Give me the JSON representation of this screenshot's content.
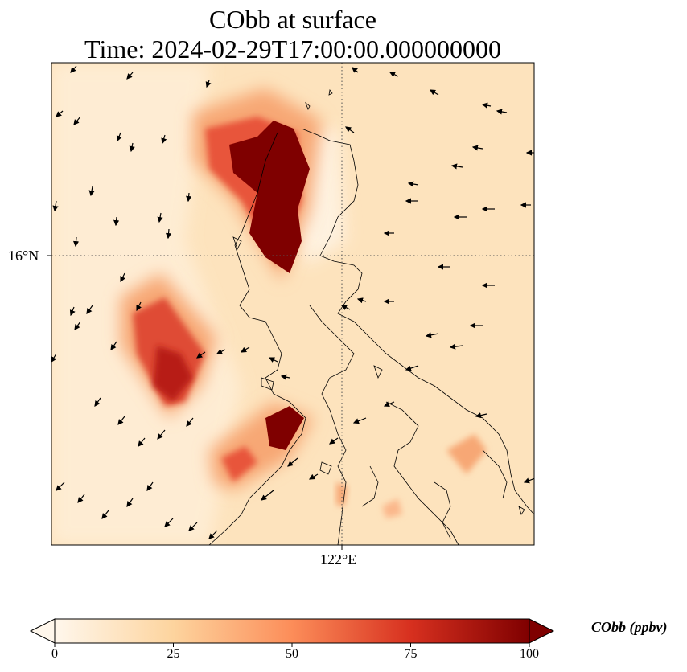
{
  "title_line1": "CObb at surface",
  "title_line2": "Time: 2024-02-29T17:00:00.000000000",
  "latitude_tick": "16°N",
  "longitude_tick": "122°E",
  "colorbar": {
    "label": "CObb (ppbv)",
    "min": 0,
    "max": 100,
    "ticks": [
      "0",
      "25",
      "50",
      "75",
      "100"
    ],
    "colormap": "OrRd",
    "colors": [
      "#fff7ec",
      "#fdd49e",
      "#fc8d59",
      "#d7301f",
      "#7f0000"
    ]
  },
  "map": {
    "background_color": "#fde3bd",
    "gridlines": "dotted",
    "vectors": "surface wind arrows"
  }
}
